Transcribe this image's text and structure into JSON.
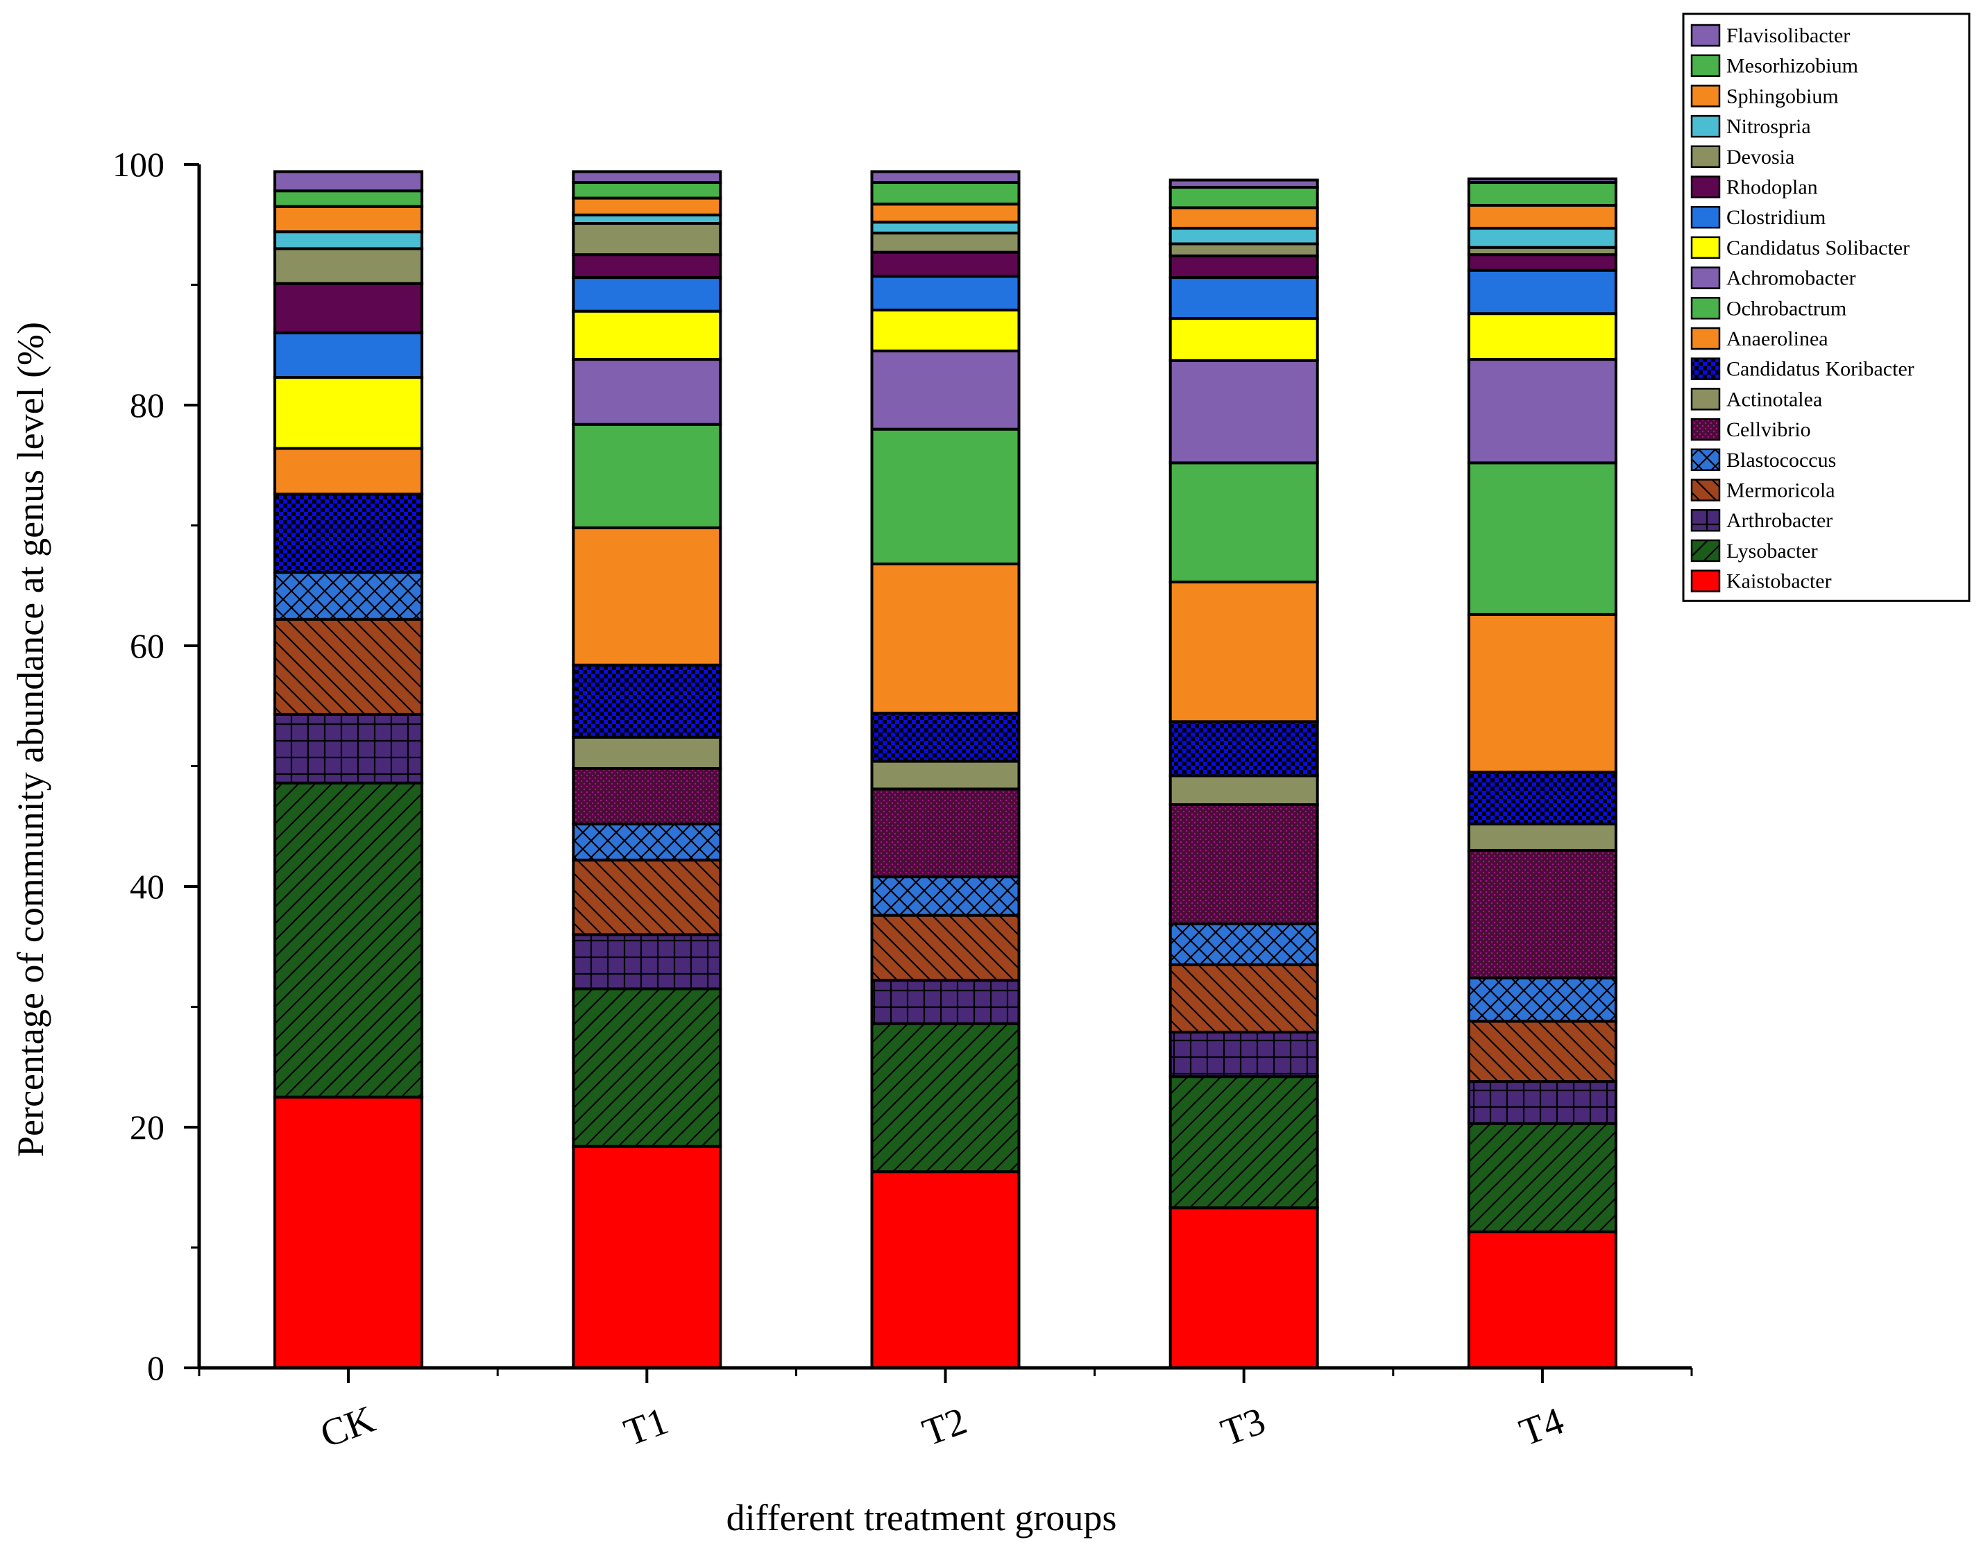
{
  "chart_data": {
    "type": "stacked-bar",
    "xlabel": "different treatment groups",
    "ylabel": "Percentage of community abundance at genus level (%)",
    "ylim": [
      0,
      100
    ],
    "yticks": [
      0,
      20,
      40,
      60,
      80,
      100
    ],
    "categories": [
      "CK",
      "T1",
      "T2",
      "T3",
      "T4"
    ],
    "legend_position": "top-right",
    "series": [
      {
        "name": "Kaistobacter",
        "color": "#ff0000",
        "pattern": "none",
        "values": [
          22.5,
          18.4,
          16.3,
          13.3,
          11.3
        ]
      },
      {
        "name": "Lysobacter",
        "color": "#1b5c1b",
        "pattern": "hatch-fwd",
        "values": [
          26.1,
          13.1,
          12.3,
          10.9,
          9.0
        ]
      },
      {
        "name": "Arthrobacter",
        "color": "#4a2a78",
        "pattern": "grid",
        "values": [
          5.7,
          4.5,
          3.6,
          3.7,
          3.5
        ]
      },
      {
        "name": "Mermoricola",
        "color": "#a0441e",
        "pattern": "hatch-back",
        "values": [
          7.9,
          6.2,
          5.4,
          5.6,
          5.0
        ]
      },
      {
        "name": "Blastococcus",
        "color": "#2e74d8",
        "pattern": "crosshatch",
        "values": [
          3.9,
          3.0,
          3.2,
          3.4,
          3.6
        ]
      },
      {
        "name": "Cellvibrio",
        "color": "#4a0d38",
        "pattern": "dots",
        "values": [
          0.0,
          4.6,
          7.3,
          9.9,
          10.6
        ]
      },
      {
        "name": "Actinotalea",
        "color": "#8b9060",
        "pattern": "none",
        "values": [
          0.0,
          2.6,
          2.3,
          2.4,
          2.2
        ]
      },
      {
        "name": "Candidatus Koribacter",
        "color": "#0a0ae0",
        "pattern": "checker",
        "values": [
          6.5,
          6.0,
          4.0,
          4.5,
          4.3
        ]
      },
      {
        "name": "Anaerolinea",
        "color": "#f5871f",
        "pattern": "none",
        "values": [
          3.8,
          11.4,
          12.4,
          11.6,
          13.1
        ]
      },
      {
        "name": "Ochrobactrum",
        "color": "#49b24a",
        "pattern": "none",
        "values": [
          0.0,
          8.6,
          11.2,
          9.9,
          12.6
        ]
      },
      {
        "name": "Achromobacter",
        "color": "#8260b0",
        "pattern": "none",
        "values": [
          0.0,
          5.4,
          6.5,
          8.5,
          8.6
        ]
      },
      {
        "name": "Candidatus Solibacter",
        "color": "#ffff00",
        "pattern": "none",
        "values": [
          5.9,
          4.0,
          3.4,
          3.5,
          3.8
        ]
      },
      {
        "name": "Clostridium",
        "color": "#2272e0",
        "pattern": "none",
        "values": [
          3.7,
          2.8,
          2.8,
          3.4,
          3.6
        ]
      },
      {
        "name": "Rhodoplan",
        "color": "#5e0650",
        "pattern": "none",
        "values": [
          4.1,
          1.9,
          2.0,
          1.8,
          1.3
        ]
      },
      {
        "name": "Devosia",
        "color": "#8b9060",
        "pattern": "none",
        "values": [
          2.9,
          2.6,
          1.6,
          1.0,
          0.6
        ]
      },
      {
        "name": "Nitrospria",
        "color": "#4bbdd2",
        "pattern": "none",
        "values": [
          1.4,
          0.7,
          0.9,
          1.3,
          1.6
        ]
      },
      {
        "name": "Sphingobium",
        "color": "#f5871f",
        "pattern": "none",
        "values": [
          2.1,
          1.4,
          1.5,
          1.7,
          1.9
        ]
      },
      {
        "name": "Mesorhizobium",
        "color": "#49b24a",
        "pattern": "none",
        "values": [
          1.3,
          1.3,
          1.8,
          1.7,
          1.9
        ]
      },
      {
        "name": "Flavisolibacter",
        "color": "#8260b0",
        "pattern": "none",
        "values": [
          1.6,
          0.9,
          0.9,
          0.6,
          0.3
        ]
      }
    ]
  }
}
